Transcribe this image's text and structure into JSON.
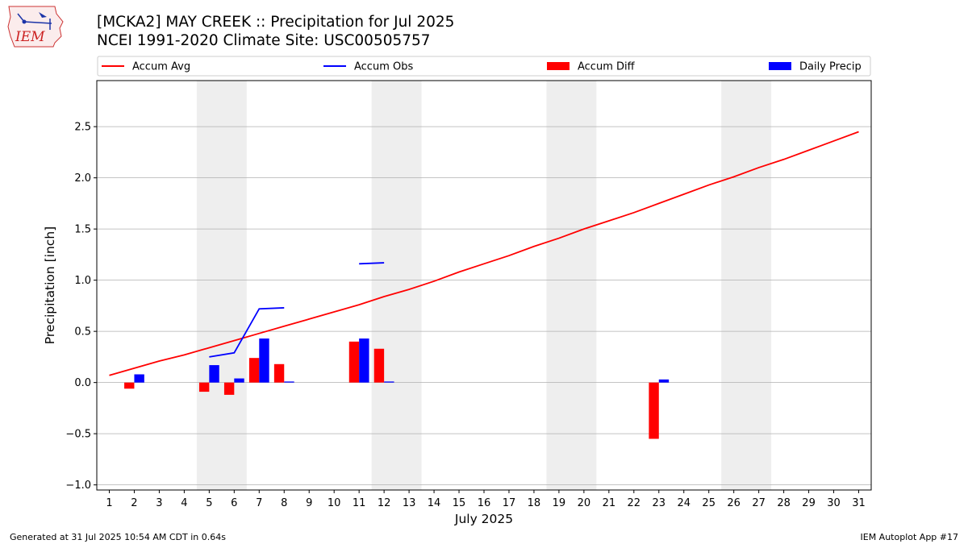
{
  "header": {
    "title_line1": "[MCKA2] MAY CREEK :: Precipitation for Jul 2025",
    "title_line2": "NCEI 1991-2020 Climate Site: USC00505757"
  },
  "logo": {
    "text": "IEM"
  },
  "footer": {
    "left": "Generated at 31 Jul 2025 10:54 AM CDT in 0.64s",
    "right": "IEM Autoplot App #17"
  },
  "chart_data": {
    "type": "bar",
    "xlabel": "July 2025",
    "ylabel": "Precipitation [inch]",
    "xlim": [
      0.5,
      31.5
    ],
    "ylim": [
      -1.05,
      2.95
    ],
    "yticks": [
      -1.0,
      -0.5,
      0.0,
      0.5,
      1.0,
      1.5,
      2.0,
      2.5
    ],
    "ytick_labels": [
      "−1.0",
      "−0.5",
      "0.0",
      "0.5",
      "1.0",
      "1.5",
      "2.0",
      "2.5"
    ],
    "x": [
      1,
      2,
      3,
      4,
      5,
      6,
      7,
      8,
      9,
      10,
      11,
      12,
      13,
      14,
      15,
      16,
      17,
      18,
      19,
      20,
      21,
      22,
      23,
      24,
      25,
      26,
      27,
      28,
      29,
      30,
      31
    ],
    "xtick_labels": [
      "1",
      "2",
      "3",
      "4",
      "5",
      "6",
      "7",
      "8",
      "9",
      "10",
      "11",
      "12",
      "13",
      "14",
      "15",
      "16",
      "17",
      "18",
      "19",
      "20",
      "21",
      "22",
      "23",
      "24",
      "25",
      "26",
      "27",
      "28",
      "29",
      "30",
      "31"
    ],
    "grid": "horizontal",
    "legend_position": "top",
    "weekend_shading": [
      [
        5,
        6
      ],
      [
        12,
        13
      ],
      [
        19,
        20
      ],
      [
        26,
        27
      ]
    ],
    "colors": {
      "accum_avg": "#ff0000",
      "accum_obs": "#0000ff",
      "accum_diff": "#ff0000",
      "daily_precip": "#0000ff",
      "weekend": "#eeeeee",
      "grid": "#b0b0b0"
    },
    "series": [
      {
        "name": "Accum Avg",
        "kind": "line",
        "values": [
          0.07,
          0.14,
          0.21,
          0.27,
          0.34,
          0.41,
          0.48,
          0.55,
          0.62,
          0.69,
          0.76,
          0.84,
          0.91,
          0.99,
          1.08,
          1.16,
          1.24,
          1.33,
          1.41,
          1.5,
          1.58,
          1.66,
          1.75,
          1.84,
          1.93,
          2.01,
          2.1,
          2.18,
          2.27,
          2.36,
          2.45
        ]
      },
      {
        "name": "Accum Obs",
        "kind": "line",
        "values": [
          null,
          null,
          null,
          null,
          0.25,
          0.29,
          0.72,
          0.73,
          null,
          null,
          1.16,
          1.17,
          null,
          null,
          null,
          null,
          null,
          null,
          null,
          null,
          null,
          null,
          null,
          null,
          null,
          null,
          null,
          null,
          null,
          null,
          null
        ]
      },
      {
        "name": "Accum Diff",
        "kind": "bar",
        "values": [
          null,
          -0.06,
          null,
          null,
          -0.09,
          -0.12,
          0.24,
          0.18,
          null,
          null,
          0.4,
          0.33,
          null,
          null,
          null,
          null,
          null,
          null,
          null,
          null,
          null,
          null,
          -0.55,
          null,
          null,
          null,
          null,
          null,
          null,
          null,
          null
        ]
      },
      {
        "name": "Daily Precip",
        "kind": "bar",
        "values": [
          null,
          0.08,
          null,
          null,
          0.17,
          0.04,
          0.43,
          0.01,
          null,
          null,
          0.43,
          0.01,
          null,
          null,
          null,
          null,
          null,
          null,
          null,
          null,
          null,
          null,
          0.03,
          null,
          null,
          null,
          null,
          null,
          null,
          null,
          null
        ]
      }
    ]
  }
}
